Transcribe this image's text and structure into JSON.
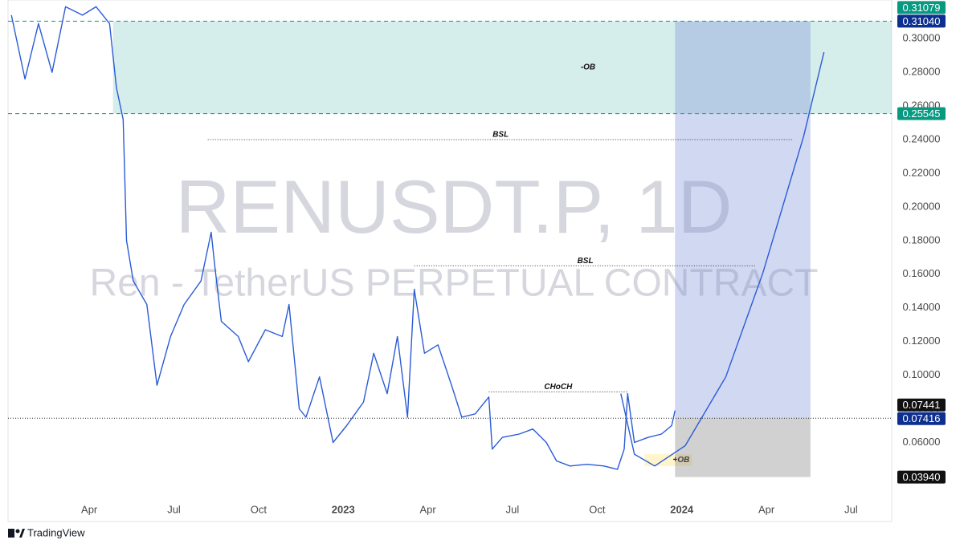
{
  "chart_data": {
    "type": "line",
    "watermark_title": "RENUSDT.P, 1D",
    "watermark_subtitle": "Ren - TetherUS PERPETUAL CONTRACT",
    "footer": "TradingView",
    "color": "#2a5bd7",
    "x": [
      2022.02,
      2022.06,
      2022.1,
      2022.14,
      2022.18,
      2022.23,
      2022.27,
      2022.31,
      2022.33,
      2022.35,
      2022.36,
      2022.38,
      2022.42,
      2022.45,
      2022.49,
      2022.53,
      2022.58,
      2022.61,
      2022.62,
      2022.64,
      2022.69,
      2022.72,
      2022.77,
      2022.82,
      2022.84,
      2022.87,
      2022.89,
      2022.93,
      2022.97,
      2023.01,
      2023.06,
      2023.09,
      2023.13,
      2023.16,
      2023.19,
      2023.21,
      2023.24,
      2023.28,
      2023.32,
      2023.35,
      2023.39,
      2023.43,
      2023.44,
      2023.47,
      2023.52,
      2023.56,
      2023.6,
      2023.63,
      2023.67,
      2023.72,
      2023.77,
      2023.81,
      2023.83,
      2023.84,
      2023.86,
      2023.9,
      2023.94,
      2023.97,
      2023.98
    ],
    "values": [
      0.314,
      0.276,
      0.309,
      0.28,
      0.319,
      0.314,
      0.319,
      0.309,
      0.271,
      0.252,
      0.18,
      0.156,
      0.142,
      0.094,
      0.123,
      0.142,
      0.156,
      0.185,
      0.166,
      0.132,
      0.123,
      0.108,
      0.127,
      0.123,
      0.142,
      0.08,
      0.075,
      0.099,
      0.06,
      0.07,
      0.084,
      0.113,
      0.089,
      0.123,
      0.075,
      0.151,
      0.113,
      0.118,
      0.094,
      0.075,
      0.077,
      0.087,
      0.056,
      0.063,
      0.065,
      0.068,
      0.06,
      0.049,
      0.046,
      0.047,
      0.046,
      0.044,
      0.056,
      0.089,
      0.06,
      0.063,
      0.065,
      0.07,
      0.079
    ],
    "xlim": [
      2022.01,
      2024.62
    ],
    "xticks": [
      {
        "value": 2022.25,
        "label": "Apr"
      },
      {
        "value": 2022.5,
        "label": "Jul"
      },
      {
        "value": 2022.75,
        "label": "Oct"
      },
      2023,
      {
        "value": 2023.25,
        "label": "Apr"
      },
      {
        "value": 2023.5,
        "label": "Jul"
      },
      {
        "value": 2023.75,
        "label": "Oct"
      },
      2024,
      {
        "value": 2024.25,
        "label": "Apr"
      },
      {
        "value": 2024.5,
        "label": "Jul"
      }
    ],
    "ylim": [
      0.013,
      0.323
    ],
    "yticks": [
      {
        "value": 0.06,
        "label": "0.06000"
      },
      {
        "value": 0.08,
        "label": "0.08000"
      },
      {
        "value": 0.1,
        "label": "0.10000"
      },
      {
        "value": 0.12,
        "label": "0.12000"
      },
      {
        "value": 0.14,
        "label": "0.14000"
      },
      {
        "value": 0.16,
        "label": "0.16000"
      },
      {
        "value": 0.18,
        "label": "0.18000"
      },
      {
        "value": 0.2,
        "label": "0.20000"
      },
      {
        "value": 0.22,
        "label": "0.22000"
      },
      {
        "value": 0.24,
        "label": "0.24000"
      },
      {
        "value": 0.26,
        "label": "0.26000"
      },
      {
        "value": 0.28,
        "label": "0.28000"
      },
      {
        "value": 0.3,
        "label": "0.30000"
      }
    ],
    "zones": [
      {
        "label": "-OB",
        "top": 0.3104,
        "bottom": 0.25545,
        "x_start": 2022.32,
        "x_end": 2024.62,
        "color": "#b2dfdb"
      },
      {
        "label": "+OB",
        "top": 0.053,
        "bottom": 0.046,
        "x_start": 2023.89,
        "x_end": 2024.03,
        "color": "#fff3c4"
      }
    ],
    "levels": [
      {
        "label": "BSL",
        "value": 0.24,
        "x_start": 2022.6,
        "x_end": 2024.33
      },
      {
        "label": "BSL",
        "value": 0.165,
        "x_start": 2023.21,
        "x_end": 2024.22
      },
      {
        "label": "CHoCH",
        "value": 0.09,
        "x_start": 2023.43,
        "x_end": 2023.84
      }
    ],
    "position": {
      "x_start": 2023.98,
      "x_end": 2024.38,
      "target": 0.3104,
      "entry": 0.07441,
      "stop": 0.0394,
      "target_color": "#7a8fd6",
      "stop_color": "#8c8c8c"
    },
    "projection": {
      "x": [
        2023.82,
        2023.86,
        2023.92,
        2024.01,
        2024.13,
        2024.24,
        2024.36,
        2024.42
      ],
      "values": [
        0.089,
        0.053,
        0.046,
        0.058,
        0.099,
        0.161,
        0.242,
        0.292
      ]
    },
    "current_price": 0.07441,
    "price_labels": [
      {
        "value": 0.31079,
        "label": "0.31079",
        "color": "#089981"
      },
      {
        "value": 0.3104,
        "label": "0.31040",
        "color": "#0d2f8f"
      },
      {
        "value": 0.25545,
        "label": "0.25545",
        "color": "#089981"
      },
      {
        "value": 0.07441,
        "label": "0.07441",
        "color": "#111111"
      },
      {
        "value": 0.07416,
        "label": "0.07416",
        "color": "#0d2f8f"
      },
      {
        "value": 0.0394,
        "label": "0.03940",
        "color": "#111111"
      }
    ]
  }
}
